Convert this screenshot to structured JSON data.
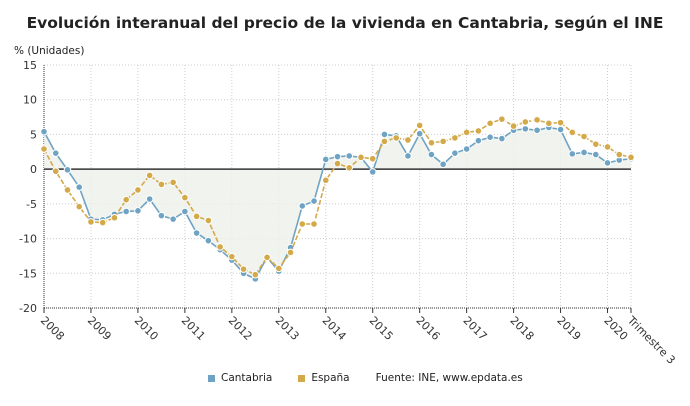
{
  "chart_data": {
    "type": "line",
    "title": "Evolución interanual del precio de la vivienda en Cantabria, según el INE",
    "ylabel": "% (Unidades)",
    "xlabel": "",
    "ylim": [
      -20,
      15
    ],
    "yticks": [
      15,
      10,
      5,
      0,
      -5,
      -10,
      -15,
      -20
    ],
    "xtick_labels": [
      "2008",
      "2009",
      "2010",
      "2011",
      "2012",
      "2013",
      "2014",
      "2015",
      "2016",
      "2017",
      "2018",
      "2019",
      "2020",
      "Trimestre 3"
    ],
    "x_start": "2008 T1",
    "x_end": "2020 T3",
    "frequency": "quarterly",
    "grid": true,
    "legend_position": "bottom",
    "source": "Fuente: INE, www.epdata.es",
    "series": [
      {
        "name": "Cantabria",
        "color": "#6fa3c4",
        "values": [
          5.4,
          2.3,
          -0.1,
          -2.6,
          -7.2,
          -7.3,
          -6.5,
          -6.1,
          -6.0,
          -4.3,
          -6.7,
          -7.2,
          -6.1,
          -9.2,
          -10.3,
          -11.6,
          -13.1,
          -15.0,
          -15.8,
          -12.7,
          -14.7,
          -11.3,
          -5.3,
          -4.6,
          1.4,
          1.8,
          1.9,
          1.7,
          -0.4,
          5.0,
          4.8,
          1.9,
          5.1,
          2.1,
          0.7,
          2.3,
          2.9,
          4.1,
          4.6,
          4.4,
          5.6,
          5.8,
          5.6,
          6.0,
          5.7,
          2.2,
          2.4,
          2.1,
          0.9,
          1.3,
          1.5
        ]
      },
      {
        "name": "España",
        "color": "#d4a94a",
        "values": [
          2.9,
          -0.3,
          -3.0,
          -5.4,
          -7.6,
          -7.7,
          -7.0,
          -4.4,
          -3.0,
          -0.9,
          -2.2,
          -1.9,
          -4.1,
          -6.8,
          -7.4,
          -11.2,
          -12.6,
          -14.4,
          -15.2,
          -12.7,
          -14.3,
          -12.0,
          -7.9,
          -7.9,
          -1.6,
          0.8,
          0.2,
          1.7,
          1.5,
          4.0,
          4.5,
          4.2,
          6.3,
          3.8,
          4.0,
          4.5,
          5.3,
          5.5,
          6.6,
          7.2,
          6.2,
          6.8,
          7.1,
          6.6,
          6.7,
          5.3,
          4.7,
          3.6,
          3.2,
          2.1,
          1.7
        ]
      }
    ]
  }
}
